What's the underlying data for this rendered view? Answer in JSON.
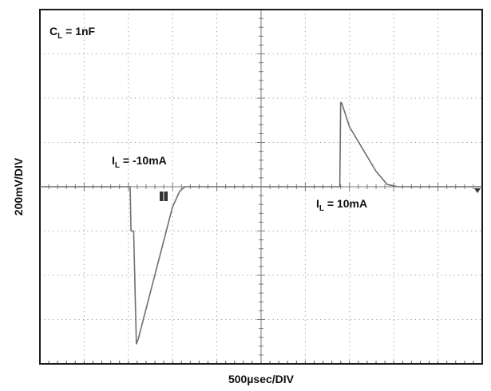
{
  "chart_data": {
    "type": "line",
    "title": "",
    "xlabel": "500µsec/DIV",
    "ylabel": "200mV/DIV",
    "xlim": [
      0,
      10
    ],
    "ylim": [
      -4,
      4
    ],
    "x_unit": "divisions",
    "y_unit": "divisions",
    "grid": true,
    "annotations": [
      {
        "main": "C",
        "sub": "L",
        "rest": " = 1nF"
      },
      {
        "main": "I",
        "sub": "L",
        "rest": " = -10mA"
      },
      {
        "main": "I",
        "sub": "L",
        "rest": " = 10mA"
      }
    ],
    "series": [
      {
        "name": "",
        "color": "#6f6f6f",
        "x": [
          0,
          2.04,
          2.06,
          2.12,
          2.18,
          2.22,
          3.0,
          3.16,
          3.28,
          3.45,
          3.6,
          6.78,
          6.8,
          6.82,
          7.0,
          7.3,
          7.6,
          7.85,
          8.1,
          10.0
        ],
        "y": [
          0.0,
          0.0,
          -1.0,
          -1.0,
          -3.55,
          -3.45,
          -0.45,
          -0.1,
          0.0,
          0.0,
          0.0,
          0.0,
          1.9,
          1.9,
          1.35,
          0.85,
          0.35,
          0.05,
          0.0,
          0.0
        ]
      }
    ]
  }
}
